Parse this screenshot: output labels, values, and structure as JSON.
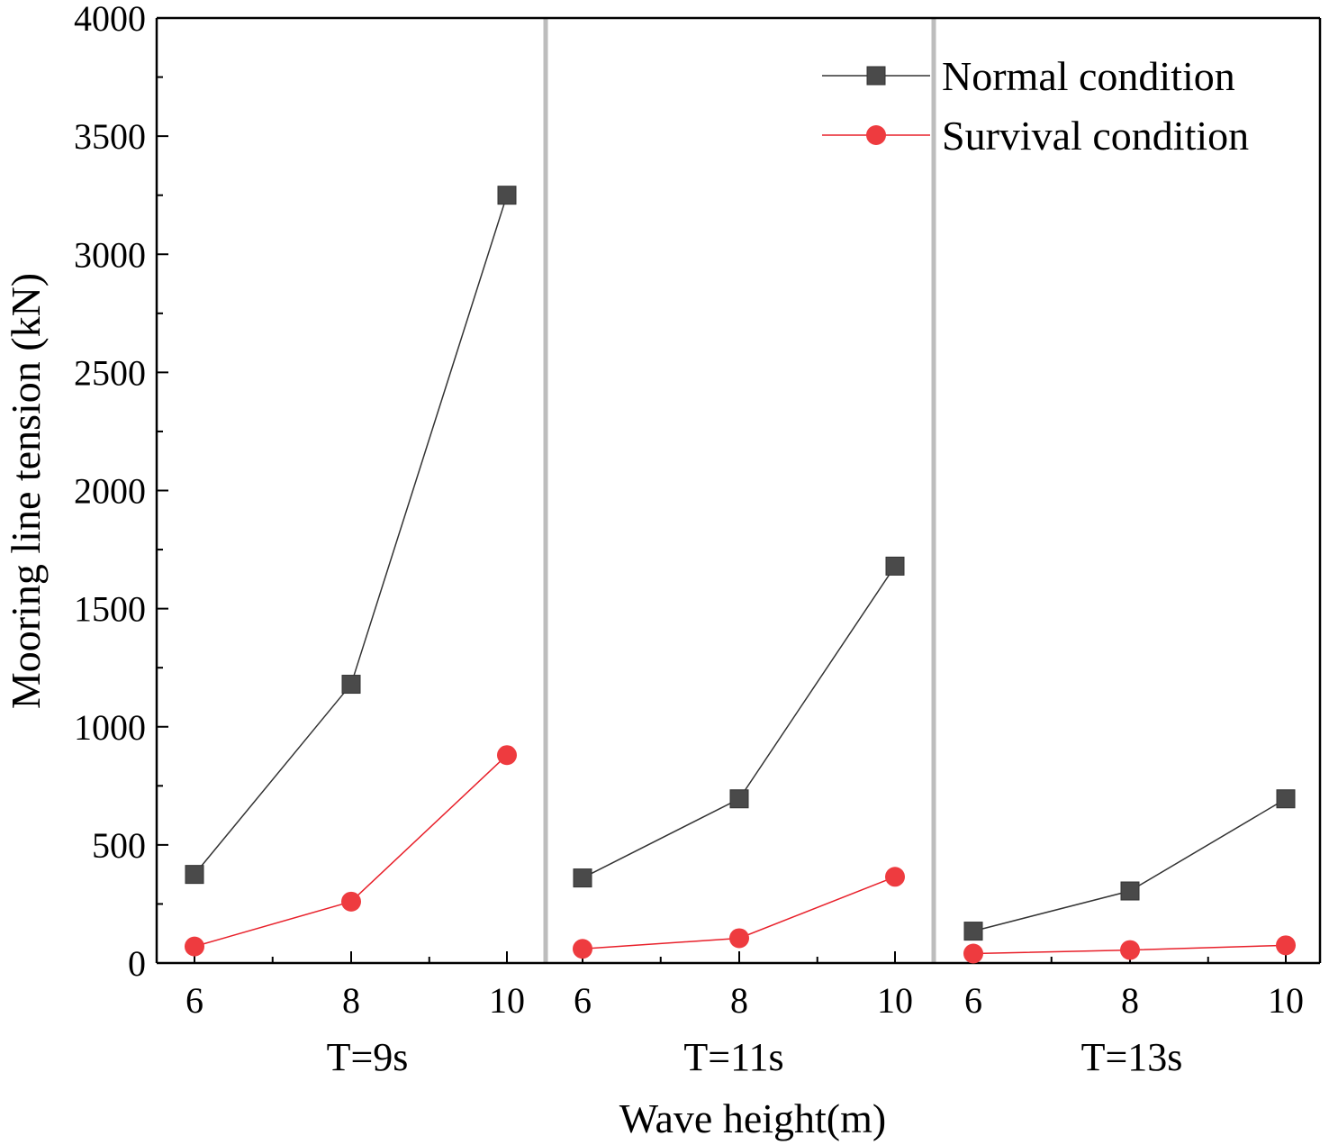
{
  "chart_data": {
    "type": "line",
    "ylabel": "Mooring line tension (kN)",
    "xlabel": "Wave height(m)",
    "ylim": [
      0,
      4000
    ],
    "yticks": [
      "0",
      "500",
      "1000",
      "1500",
      "2000",
      "2500",
      "3000",
      "3500",
      "4000"
    ],
    "x": [
      6,
      8,
      10
    ],
    "xtick_labels": [
      "6",
      "8",
      "10"
    ],
    "legend_position": "top-right",
    "grid": false,
    "colors": {
      "normal": "#333333",
      "normal_marker": "#4a4a4a",
      "survival": "#e8202a",
      "survival_marker": "#ee3b3f",
      "divider": "#bdbdbd",
      "axis": "#000000"
    },
    "legend": [
      {
        "name": "Normal condition",
        "marker": "square"
      },
      {
        "name": "Survival condition",
        "marker": "circle"
      }
    ],
    "panels": [
      {
        "label": "T=9s",
        "series": [
          {
            "name": "Normal condition",
            "values": [
              375,
              1180,
              3250
            ]
          },
          {
            "name": "Survival condition",
            "values": [
              70,
              260,
              880
            ]
          }
        ]
      },
      {
        "label": "T=11s",
        "series": [
          {
            "name": "Normal condition",
            "values": [
              360,
              695,
              1680
            ]
          },
          {
            "name": "Survival condition",
            "values": [
              60,
              105,
              365
            ]
          }
        ]
      },
      {
        "label": "T=13s",
        "series": [
          {
            "name": "Normal condition",
            "values": [
              135,
              305,
              695
            ]
          },
          {
            "name": "Survival condition",
            "values": [
              40,
              55,
              75
            ]
          }
        ]
      }
    ]
  }
}
